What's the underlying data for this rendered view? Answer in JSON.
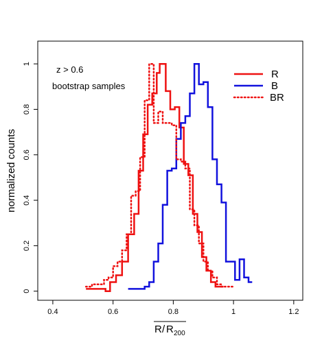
{
  "chart_data": {
    "type": "line",
    "title": "",
    "xlabel_main": "R",
    "xlabel_over": "R",
    "xlabel_sub": "200",
    "xlabel_slash": "/",
    "ylabel": "normalized counts",
    "xlim": [
      0.35,
      1.23
    ],
    "ylim": [
      -0.04,
      1.1
    ],
    "xticks": [
      "0.4",
      "0.6",
      "0.8",
      "1",
      "1.2"
    ],
    "yticks": [
      "0",
      "0.2",
      "0.4",
      "0.6",
      "0.8",
      "1"
    ],
    "annotations": [
      "z > 0.6",
      "bootstrap samples"
    ],
    "legend_position": "top-right",
    "series": [
      {
        "name": "R",
        "color": "#ee1111",
        "style": "solid",
        "steps": [
          [
            0.51,
            0.01
          ],
          [
            0.55,
            0.01
          ],
          [
            0.575,
            0.0
          ],
          [
            0.59,
            0.04
          ],
          [
            0.61,
            0.07
          ],
          [
            0.63,
            0.13
          ],
          [
            0.65,
            0.25
          ],
          [
            0.67,
            0.34
          ],
          [
            0.685,
            0.53
          ],
          [
            0.7,
            0.69
          ],
          [
            0.715,
            0.82
          ],
          [
            0.73,
            0.87
          ],
          [
            0.745,
            0.96
          ],
          [
            0.755,
            1.0
          ],
          [
            0.775,
            0.88
          ],
          [
            0.79,
            0.8
          ],
          [
            0.805,
            0.81
          ],
          [
            0.82,
            0.72
          ],
          [
            0.835,
            0.56
          ],
          [
            0.85,
            0.51
          ],
          [
            0.865,
            0.34
          ],
          [
            0.88,
            0.26
          ],
          [
            0.895,
            0.15
          ],
          [
            0.91,
            0.09
          ],
          [
            0.925,
            0.04
          ],
          [
            0.94,
            0.02
          ],
          [
            0.955,
            0.02
          ]
        ]
      },
      {
        "name": "B",
        "color": "#1111dd",
        "style": "solid",
        "steps": [
          [
            0.65,
            0.01
          ],
          [
            0.705,
            0.02
          ],
          [
            0.72,
            0.04
          ],
          [
            0.735,
            0.13
          ],
          [
            0.75,
            0.21
          ],
          [
            0.765,
            0.38
          ],
          [
            0.78,
            0.53
          ],
          [
            0.795,
            0.54
          ],
          [
            0.81,
            0.67
          ],
          [
            0.825,
            0.74
          ],
          [
            0.84,
            0.77
          ],
          [
            0.855,
            0.87
          ],
          [
            0.87,
            1.0
          ],
          [
            0.885,
            0.91
          ],
          [
            0.9,
            0.92
          ],
          [
            0.915,
            0.81
          ],
          [
            0.93,
            0.58
          ],
          [
            0.945,
            0.47
          ],
          [
            0.96,
            0.39
          ],
          [
            0.975,
            0.13
          ],
          [
            0.99,
            0.13
          ],
          [
            1.005,
            0.05
          ],
          [
            1.02,
            0.14
          ],
          [
            1.035,
            0.06
          ],
          [
            1.05,
            0.04
          ]
        ]
      },
      {
        "name": "BR",
        "color": "#ee1111",
        "style": "dotted",
        "steps": [
          [
            0.51,
            0.02
          ],
          [
            0.53,
            0.03
          ],
          [
            0.55,
            0.03
          ],
          [
            0.57,
            0.05
          ],
          [
            0.585,
            0.06
          ],
          [
            0.6,
            0.11
          ],
          [
            0.615,
            0.13
          ],
          [
            0.63,
            0.18
          ],
          [
            0.645,
            0.25
          ],
          [
            0.66,
            0.42
          ],
          [
            0.675,
            0.44
          ],
          [
            0.69,
            0.59
          ],
          [
            0.705,
            0.84
          ],
          [
            0.72,
            1.0
          ],
          [
            0.735,
            0.74
          ],
          [
            0.75,
            0.79
          ],
          [
            0.765,
            0.74
          ],
          [
            0.78,
            0.74
          ],
          [
            0.795,
            0.73
          ],
          [
            0.81,
            0.58
          ],
          [
            0.825,
            0.57
          ],
          [
            0.84,
            0.54
          ],
          [
            0.855,
            0.36
          ],
          [
            0.87,
            0.29
          ],
          [
            0.885,
            0.21
          ],
          [
            0.9,
            0.13
          ],
          [
            0.915,
            0.09
          ],
          [
            0.93,
            0.06
          ],
          [
            0.945,
            0.03
          ],
          [
            0.96,
            0.02
          ],
          [
            0.975,
            0.02
          ],
          [
            0.99,
            0.02
          ]
        ]
      }
    ]
  }
}
